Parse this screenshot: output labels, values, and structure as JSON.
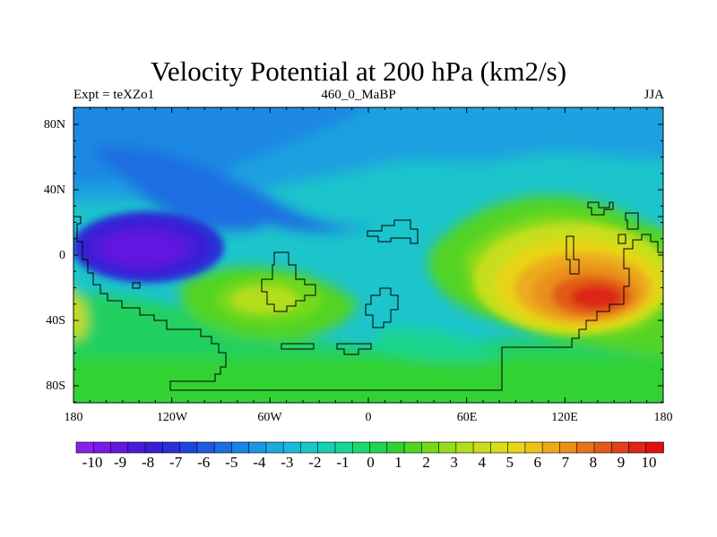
{
  "title": "Velocity Potential at 200 hPa (km2/s)",
  "subtitle_left": "Expt = teXZo1",
  "subtitle_center": "460_0_MaBP",
  "subtitle_right": "JJA",
  "map": {
    "y_labels": [
      "80N",
      "40N",
      "0",
      "40S",
      "80S"
    ],
    "x_labels": [
      "180",
      "120W",
      "60W",
      "0",
      "60E",
      "120E",
      "180"
    ]
  },
  "colorbar": {
    "labels": [
      "-10",
      "-9",
      "-8",
      "-7",
      "-6",
      "-5",
      "-4",
      "-3",
      "-2",
      "-1",
      "0",
      "1",
      "2",
      "3",
      "4",
      "5",
      "6",
      "7",
      "8",
      "9",
      "10"
    ],
    "colors": [
      "#8a1fe8",
      "#7a1ae6",
      "#6218e0",
      "#4a1ad8",
      "#3a1ed6",
      "#2a2fd8",
      "#1f45dc",
      "#1f5ae0",
      "#1c6ee2",
      "#1a85e2",
      "#1a98e0",
      "#18acdc",
      "#18bcd8",
      "#18c8c8",
      "#18cfae",
      "#1ad690",
      "#1cd870",
      "#20d650",
      "#30d232",
      "#52d420",
      "#74d81c",
      "#95dc1c",
      "#b2de1c",
      "#c8de1c",
      "#dadc1a",
      "#e8d418",
      "#ecc21a",
      "#ecaa1a",
      "#e8901a",
      "#e67418",
      "#e25a16",
      "#e0401a",
      "#dc2616",
      "#e01010"
    ]
  }
}
